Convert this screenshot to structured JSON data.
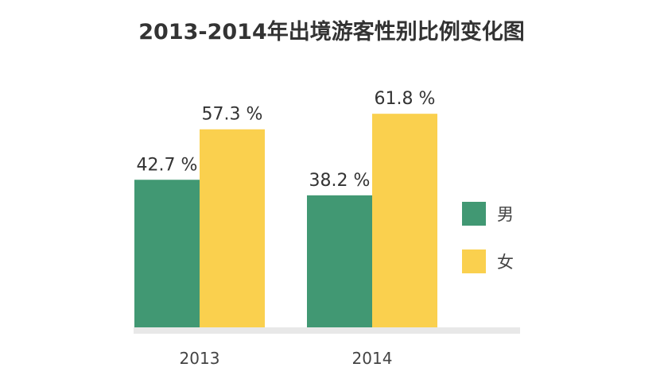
{
  "chart_data": {
    "type": "bar",
    "title": "2013-2014年出境游客性别比例变化图",
    "categories": [
      "2013",
      "2014"
    ],
    "series": [
      {
        "name": "男",
        "color": "#419873",
        "values": [
          42.7,
          38.2
        ],
        "labels": [
          "42.7 %",
          "38.2 %"
        ]
      },
      {
        "name": "女",
        "color": "#FAD04E",
        "values": [
          57.3,
          61.8
        ],
        "labels": [
          "57.3 %",
          "61.8 %"
        ]
      }
    ],
    "xlabel": "",
    "ylabel": "",
    "ylim": [
      0,
      100
    ],
    "grid": false,
    "legend_position": "right",
    "axis_color": "#e8e8e8"
  }
}
